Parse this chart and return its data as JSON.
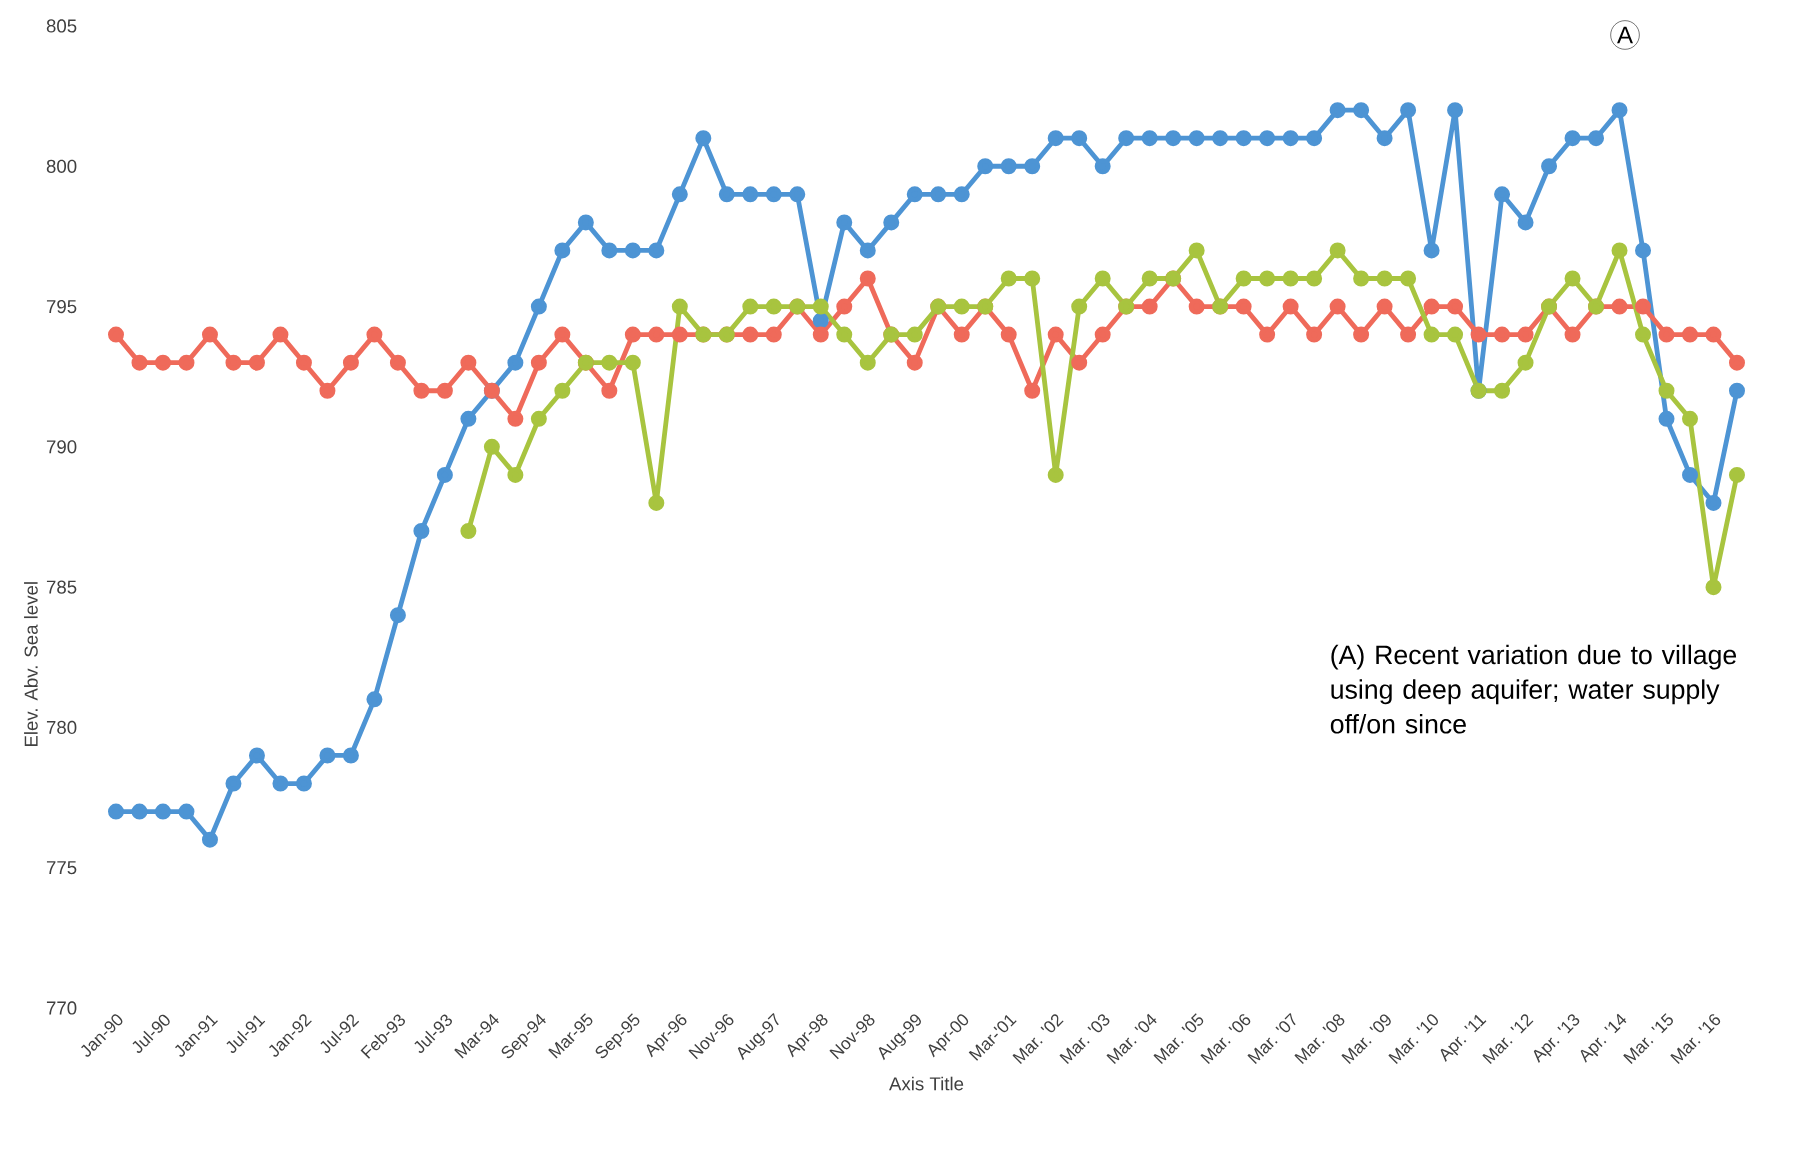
{
  "chart_data": {
    "type": "line",
    "xlabel": "Axis Title",
    "ylabel": "Elev. Abv. Sea level",
    "categories": [
      "Jan-90",
      null,
      "Jul-90",
      null,
      "Jan-91",
      null,
      "Jul-91",
      null,
      "Jan-92",
      null,
      "Jul-92",
      null,
      "Feb-93",
      null,
      "Jul-93",
      null,
      "Mar-94",
      null,
      "Sep-94",
      null,
      "Mar-95",
      null,
      "Sep-95",
      null,
      "Apr-96",
      null,
      "Nov-96",
      null,
      "Aug-97",
      null,
      "Apr-98",
      null,
      "Nov-98",
      null,
      "Aug-99",
      null,
      "Apr-00",
      null,
      "Mar-'01",
      null,
      "Mar. '02",
      null,
      "Mar. '03",
      null,
      "Mar. '04",
      null,
      "Mar. '05",
      null,
      "Mar. '06",
      null,
      "Mar. '07",
      null,
      "Mar. '08",
      null,
      "Mar. '09",
      null,
      "Mar. '10",
      null,
      "Apr. '11",
      null,
      "Mar. '12",
      null,
      "Apr. '13",
      null,
      "Apr. '14",
      null,
      "Mar. '15",
      null,
      "Mar. '16",
      null
    ],
    "series": [
      {
        "color": "#4d94d4",
        "values": [
          777,
          777,
          777,
          777,
          776,
          778,
          779,
          778,
          778,
          779,
          779,
          781,
          784,
          787,
          789,
          791,
          792,
          793,
          795,
          797,
          798,
          797,
          797,
          797,
          799,
          801,
          799,
          799,
          799,
          799,
          794.5,
          798,
          797,
          798,
          799,
          799,
          799,
          800,
          800,
          800,
          801,
          801,
          800,
          801,
          801,
          801,
          801,
          801,
          801,
          801,
          801,
          801,
          802,
          802,
          801,
          802,
          797,
          802,
          792,
          799,
          798,
          800,
          801,
          801,
          802,
          797,
          791,
          789,
          788,
          792
        ]
      },
      {
        "color": "#ef6a5a",
        "values": [
          794,
          793,
          793,
          793,
          794,
          793,
          793,
          794,
          793,
          792,
          793,
          794,
          793,
          792,
          792,
          793,
          792,
          791,
          793,
          794,
          793,
          792,
          794,
          794,
          794,
          794,
          794,
          794,
          794,
          795,
          794,
          795,
          796,
          794,
          793,
          795,
          794,
          795,
          794,
          792,
          794,
          793,
          794,
          795,
          795,
          796,
          795,
          795,
          795,
          794,
          795,
          794,
          795,
          794,
          795,
          794,
          795,
          795,
          794,
          794,
          794,
          795,
          794,
          795,
          795,
          795,
          794,
          794,
          794,
          793
        ]
      },
      {
        "color": "#a8c43f",
        "values": [
          null,
          null,
          null,
          null,
          null,
          null,
          null,
          null,
          null,
          null,
          null,
          null,
          null,
          null,
          null,
          787,
          790,
          789,
          791,
          792,
          793,
          793,
          793,
          788,
          795,
          794,
          794,
          795,
          795,
          795,
          795,
          794,
          793,
          794,
          794,
          795,
          795,
          795,
          796,
          796,
          789,
          795,
          796,
          795,
          796,
          796,
          797,
          795,
          796,
          796,
          796,
          796,
          797,
          796,
          796,
          796,
          794,
          794,
          792,
          792,
          793,
          795,
          796,
          795,
          797,
          794,
          792,
          791,
          785,
          789
        ]
      }
    ],
    "ylim": [
      770,
      805
    ],
    "yticks": [
      770,
      775,
      780,
      785,
      790,
      795,
      800,
      805
    ],
    "marker": "circle",
    "line_style": "solid",
    "annotations": [
      "A",
      "(A) Recent variation due to village using deep aquifer; water supply off/on since"
    ]
  }
}
